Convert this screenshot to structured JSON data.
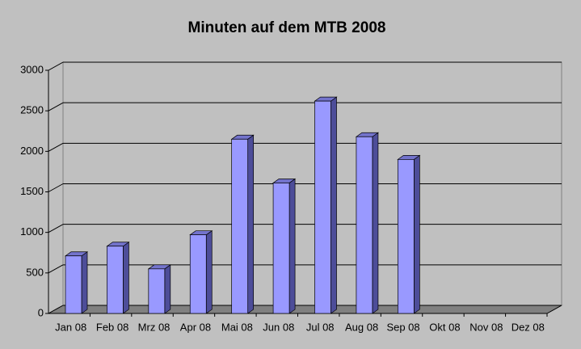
{
  "chart_data": {
    "type": "bar",
    "title": "Minuten auf dem MTB 2008",
    "categories": [
      "Jan 08",
      "Feb 08",
      "Mrz 08",
      "Apr 08",
      "Mai 08",
      "Jun 08",
      "Jul 08",
      "Aug 08",
      "Sep 08",
      "Okt 08",
      "Nov 08",
      "Dez 08"
    ],
    "values": [
      710,
      830,
      550,
      970,
      2150,
      1610,
      2620,
      2180,
      1900,
      null,
      null,
      null
    ],
    "color": "#9999ff",
    "ylim": [
      0,
      3000
    ],
    "yticks": [
      0,
      500,
      1000,
      1500,
      2000,
      2500,
      3000
    ],
    "grid": true
  }
}
